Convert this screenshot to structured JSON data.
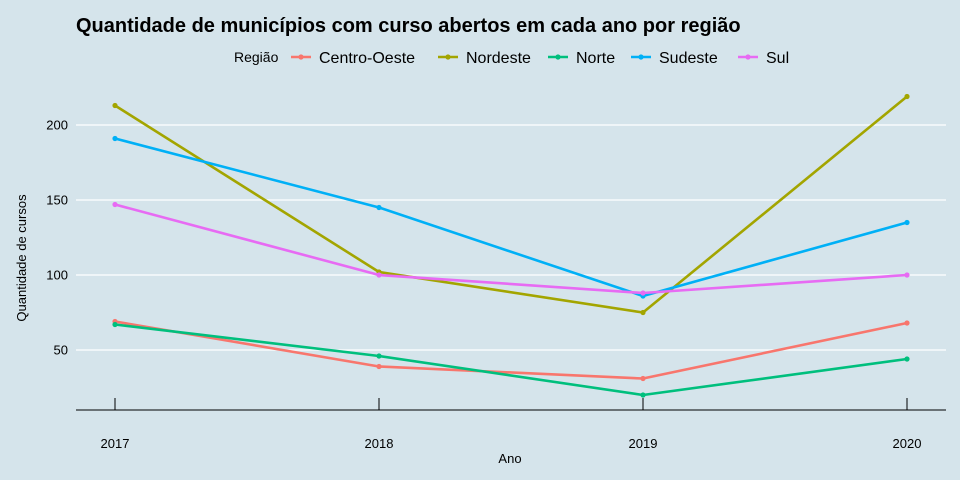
{
  "chart_data": {
    "type": "line",
    "title": "Quantidade de municípios com curso abertos em cada ano por região",
    "xlabel": "Ano",
    "ylabel": "Quantidade de cursos",
    "legend_title": "Região",
    "legend_position": "top",
    "grid": true,
    "x": [
      "2017",
      "2018",
      "2019",
      "2020"
    ],
    "ylim": [
      10,
      222
    ],
    "y_ticks": [
      "50",
      "100",
      "150",
      "200"
    ],
    "background": "#d5e4eb",
    "series": [
      {
        "name": "Centro-Oeste",
        "color": "#f8766d",
        "values": [
          69,
          39,
          31,
          68
        ]
      },
      {
        "name": "Nordeste",
        "color": "#a3a500",
        "values": [
          213,
          102,
          75,
          219
        ]
      },
      {
        "name": "Norte",
        "color": "#00bf7d",
        "values": [
          67,
          46,
          20,
          44
        ]
      },
      {
        "name": "Sudeste",
        "color": "#00b0f6",
        "values": [
          191,
          145,
          86,
          135
        ]
      },
      {
        "name": "Sul",
        "color": "#e76bf3",
        "values": [
          147,
          100,
          88,
          100
        ]
      }
    ]
  }
}
